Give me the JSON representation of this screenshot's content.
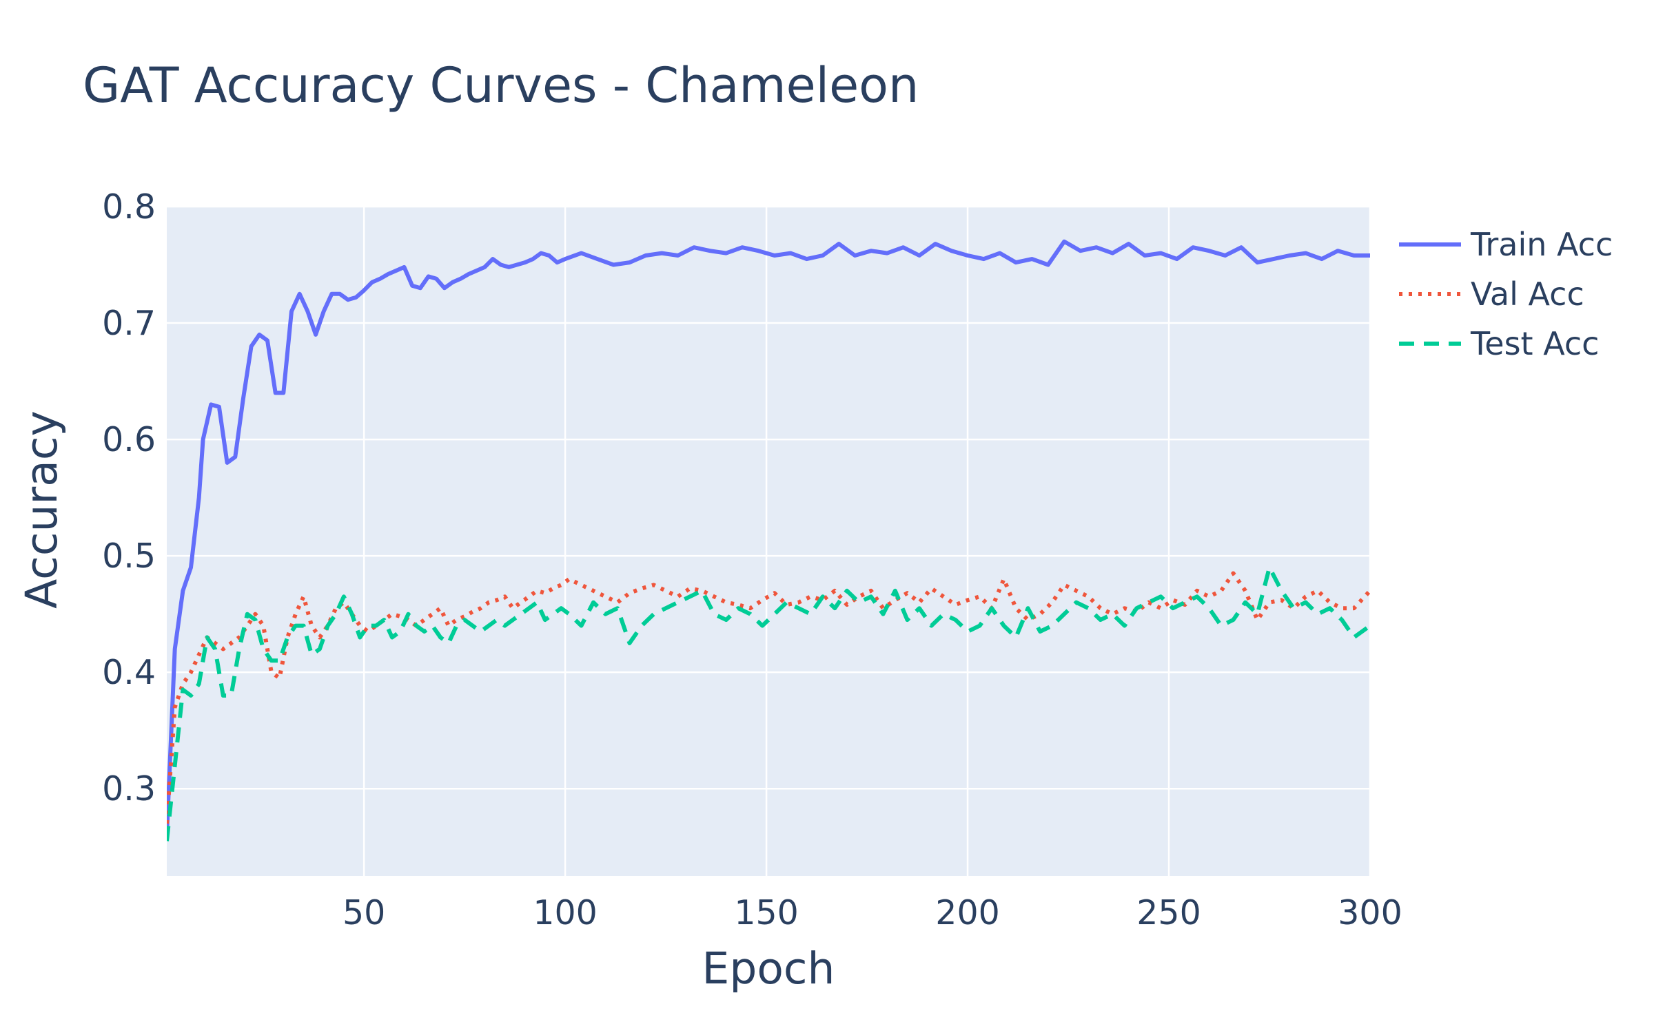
{
  "chart_data": {
    "type": "line",
    "title": "GAT Accuracy Curves - Chameleon",
    "xlabel": "Epoch",
    "ylabel": "Accuracy",
    "xlim": [
      1,
      300
    ],
    "ylim": [
      0.225,
      0.8
    ],
    "xticks": [
      50,
      100,
      150,
      200,
      250,
      300
    ],
    "yticks": [
      0.3,
      0.4,
      0.5,
      0.6,
      0.7,
      0.8
    ],
    "grid": true,
    "legend_position": "top-right",
    "plot_background": "#e5ecf6",
    "series": [
      {
        "name": "Train Acc",
        "color": "#636efa",
        "dash": "solid",
        "x": [
          1,
          3,
          5,
          7,
          9,
          10,
          12,
          14,
          16,
          18,
          20,
          22,
          24,
          26,
          28,
          30,
          32,
          34,
          36,
          38,
          40,
          42,
          44,
          46,
          48,
          50,
          52,
          54,
          56,
          58,
          60,
          62,
          64,
          66,
          68,
          70,
          72,
          74,
          76,
          78,
          80,
          82,
          84,
          86,
          88,
          90,
          92,
          94,
          96,
          98,
          100,
          104,
          108,
          112,
          116,
          120,
          124,
          128,
          132,
          136,
          140,
          144,
          148,
          152,
          156,
          160,
          164,
          168,
          172,
          176,
          180,
          184,
          188,
          192,
          196,
          200,
          204,
          208,
          212,
          216,
          220,
          224,
          228,
          232,
          236,
          240,
          244,
          248,
          252,
          256,
          260,
          264,
          268,
          272,
          276,
          280,
          284,
          288,
          292,
          296,
          300
        ],
        "y": [
          0.26,
          0.42,
          0.47,
          0.49,
          0.55,
          0.6,
          0.63,
          0.628,
          0.58,
          0.585,
          0.635,
          0.68,
          0.69,
          0.685,
          0.64,
          0.64,
          0.71,
          0.725,
          0.71,
          0.69,
          0.71,
          0.725,
          0.725,
          0.72,
          0.722,
          0.728,
          0.735,
          0.738,
          0.742,
          0.745,
          0.748,
          0.732,
          0.73,
          0.74,
          0.738,
          0.73,
          0.735,
          0.738,
          0.742,
          0.745,
          0.748,
          0.755,
          0.75,
          0.748,
          0.75,
          0.752,
          0.755,
          0.76,
          0.758,
          0.752,
          0.755,
          0.76,
          0.755,
          0.75,
          0.752,
          0.758,
          0.76,
          0.758,
          0.765,
          0.762,
          0.76,
          0.765,
          0.762,
          0.758,
          0.76,
          0.755,
          0.758,
          0.768,
          0.758,
          0.762,
          0.76,
          0.765,
          0.758,
          0.768,
          0.762,
          0.758,
          0.755,
          0.76,
          0.752,
          0.755,
          0.75,
          0.77,
          0.762,
          0.765,
          0.76,
          0.768,
          0.758,
          0.76,
          0.755,
          0.765,
          0.762,
          0.758,
          0.765,
          0.752,
          0.755,
          0.758,
          0.76,
          0.755,
          0.762,
          0.758,
          0.758
        ]
      },
      {
        "name": "Val Acc",
        "color": "#ef553b",
        "dash": "dot",
        "x": [
          1,
          3,
          5,
          7,
          9,
          11,
          13,
          15,
          17,
          19,
          21,
          23,
          25,
          27,
          29,
          31,
          33,
          35,
          37,
          39,
          41,
          43,
          45,
          47,
          49,
          51,
          53,
          55,
          57,
          59,
          61,
          63,
          65,
          67,
          69,
          71,
          73,
          75,
          77,
          79,
          81,
          83,
          85,
          87,
          89,
          91,
          93,
          95,
          97,
          99,
          101,
          104,
          107,
          110,
          113,
          116,
          119,
          122,
          125,
          128,
          131,
          134,
          137,
          140,
          143,
          146,
          149,
          152,
          155,
          158,
          161,
          164,
          167,
          170,
          173,
          176,
          179,
          182,
          185,
          188,
          191,
          194,
          197,
          200,
          203,
          206,
          209,
          212,
          215,
          218,
          221,
          224,
          227,
          230,
          233,
          236,
          239,
          242,
          245,
          248,
          251,
          254,
          257,
          260,
          263,
          266,
          269,
          272,
          275,
          278,
          281,
          284,
          287,
          290,
          293,
          296,
          300
        ],
        "y": [
          0.27,
          0.37,
          0.39,
          0.4,
          0.415,
          0.43,
          0.425,
          0.42,
          0.425,
          0.43,
          0.44,
          0.45,
          0.44,
          0.4,
          0.395,
          0.43,
          0.45,
          0.465,
          0.44,
          0.43,
          0.44,
          0.455,
          0.46,
          0.45,
          0.44,
          0.435,
          0.44,
          0.445,
          0.45,
          0.448,
          0.445,
          0.44,
          0.445,
          0.45,
          0.455,
          0.44,
          0.445,
          0.448,
          0.452,
          0.455,
          0.46,
          0.462,
          0.465,
          0.455,
          0.46,
          0.465,
          0.47,
          0.468,
          0.472,
          0.475,
          0.48,
          0.475,
          0.47,
          0.465,
          0.46,
          0.468,
          0.472,
          0.475,
          0.47,
          0.465,
          0.472,
          0.47,
          0.465,
          0.46,
          0.458,
          0.455,
          0.462,
          0.468,
          0.458,
          0.46,
          0.465,
          0.462,
          0.47,
          0.458,
          0.465,
          0.47,
          0.455,
          0.462,
          0.468,
          0.46,
          0.472,
          0.465,
          0.458,
          0.462,
          0.465,
          0.455,
          0.48,
          0.455,
          0.445,
          0.45,
          0.46,
          0.475,
          0.47,
          0.465,
          0.455,
          0.45,
          0.455,
          0.452,
          0.46,
          0.455,
          0.462,
          0.458,
          0.47,
          0.465,
          0.47,
          0.485,
          0.47,
          0.445,
          0.46,
          0.462,
          0.455,
          0.465,
          0.47,
          0.46,
          0.455,
          0.455,
          0.47
        ]
      },
      {
        "name": "Test Acc",
        "color": "#00cc96",
        "dash": "dash",
        "x": [
          1,
          3,
          5,
          7,
          9,
          11,
          13,
          15,
          17,
          19,
          21,
          23,
          25,
          27,
          29,
          31,
          33,
          35,
          37,
          39,
          41,
          43,
          45,
          47,
          49,
          51,
          53,
          55,
          57,
          59,
          61,
          63,
          65,
          67,
          69,
          71,
          73,
          75,
          77,
          79,
          81,
          83,
          85,
          87,
          89,
          91,
          93,
          95,
          97,
          99,
          101,
          104,
          107,
          110,
          113,
          116,
          119,
          122,
          125,
          128,
          131,
          134,
          137,
          140,
          143,
          146,
          149,
          152,
          155,
          158,
          161,
          164,
          167,
          170,
          173,
          176,
          179,
          182,
          185,
          188,
          191,
          194,
          197,
          200,
          203,
          206,
          209,
          212,
          215,
          218,
          221,
          224,
          227,
          230,
          233,
          236,
          239,
          242,
          245,
          248,
          251,
          254,
          257,
          260,
          263,
          266,
          269,
          272,
          275,
          278,
          281,
          284,
          287,
          290,
          293,
          296,
          300
        ],
        "y": [
          0.255,
          0.32,
          0.385,
          0.38,
          0.39,
          0.43,
          0.42,
          0.38,
          0.38,
          0.42,
          0.45,
          0.445,
          0.42,
          0.41,
          0.41,
          0.43,
          0.44,
          0.44,
          0.415,
          0.42,
          0.44,
          0.45,
          0.465,
          0.45,
          0.43,
          0.44,
          0.44,
          0.445,
          0.43,
          0.435,
          0.45,
          0.44,
          0.435,
          0.44,
          0.43,
          0.425,
          0.44,
          0.445,
          0.44,
          0.435,
          0.44,
          0.445,
          0.44,
          0.445,
          0.45,
          0.455,
          0.46,
          0.445,
          0.45,
          0.455,
          0.45,
          0.44,
          0.46,
          0.45,
          0.455,
          0.425,
          0.44,
          0.45,
          0.455,
          0.46,
          0.465,
          0.47,
          0.45,
          0.445,
          0.455,
          0.45,
          0.44,
          0.45,
          0.46,
          0.455,
          0.45,
          0.465,
          0.455,
          0.47,
          0.46,
          0.465,
          0.45,
          0.47,
          0.445,
          0.455,
          0.44,
          0.45,
          0.445,
          0.435,
          0.44,
          0.455,
          0.44,
          0.43,
          0.455,
          0.435,
          0.44,
          0.45,
          0.46,
          0.455,
          0.445,
          0.45,
          0.44,
          0.455,
          0.46,
          0.465,
          0.455,
          0.46,
          0.465,
          0.455,
          0.44,
          0.445,
          0.46,
          0.45,
          0.49,
          0.47,
          0.455,
          0.46,
          0.45,
          0.455,
          0.445,
          0.43,
          0.44
        ]
      }
    ]
  }
}
